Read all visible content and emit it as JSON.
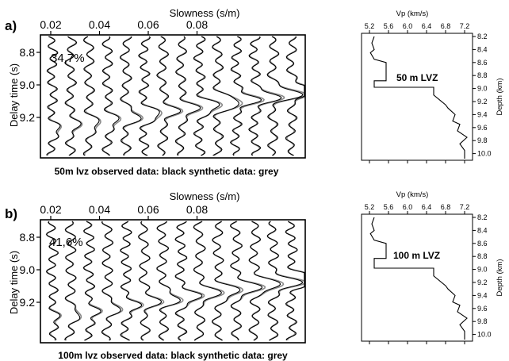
{
  "chart_data": [
    {
      "type": "line",
      "panel_label": "a)",
      "title": "Slowness (s/m)",
      "ylabel": "Delay time (s)",
      "annotation": "34,7%",
      "caption": "50m lvz  observed data: black synthetic data: grey",
      "x_ticks": [
        "0.02",
        "0.04",
        "0.06",
        "0.08"
      ],
      "y_ticks": [
        "8.8",
        "9.0",
        "9.2"
      ],
      "series": [
        {
          "name": "observed data",
          "color": "#000000"
        },
        {
          "name": "synthetic data",
          "color": "#8a8a8a"
        }
      ]
    },
    {
      "type": "line",
      "panel_label": "b)",
      "title": "Slowness (s/m)",
      "ylabel": "Delay time (s)",
      "annotation": "41,6%",
      "caption": "100m lvz  observed data: black synthetic data: grey",
      "x_ticks": [
        "0.02",
        "0.04",
        "0.06",
        "0.08"
      ],
      "y_ticks": [
        "8.8",
        "9.0",
        "9.2"
      ],
      "series": [
        {
          "name": "observed data",
          "color": "#000000"
        },
        {
          "name": "synthetic data",
          "color": "#8a8a8a"
        }
      ]
    },
    {
      "type": "line",
      "title": "Vp (km/s)",
      "ylabel": "Depth (km)",
      "annotation": "50 m LVZ",
      "x_ticks": [
        "5.2",
        "5.6",
        "6.0",
        "6.4",
        "6.8",
        "7.2"
      ],
      "y_ticks": [
        "8.2",
        "8.4",
        "8.6",
        "8.8",
        "9.0",
        "9.2",
        "9.4",
        "9.6",
        "9.8",
        "10.0"
      ],
      "x": [
        5.3,
        5.25,
        5.3,
        5.22,
        5.3,
        5.55,
        5.55,
        5.3,
        5.3,
        6.55,
        6.55,
        6.8,
        6.85,
        7.0,
        6.95,
        7.1,
        7.05,
        7.25,
        7.1,
        7.2,
        7.2
      ],
      "y": [
        8.2,
        8.3,
        8.4,
        8.45,
        8.55,
        8.6,
        8.88,
        8.88,
        8.98,
        8.98,
        9.1,
        9.25,
        9.3,
        9.4,
        9.5,
        9.55,
        9.65,
        9.75,
        9.85,
        9.95,
        10.1
      ]
    },
    {
      "type": "line",
      "title": "Vp (km/s)",
      "ylabel": "Depth (km)",
      "annotation": "100 m LVZ",
      "x_ticks": [
        "5.2",
        "5.6",
        "6.0",
        "6.4",
        "6.8",
        "7.2"
      ],
      "y_ticks": [
        "8.2",
        "8.4",
        "8.6",
        "8.8",
        "9.0",
        "9.2",
        "9.4",
        "9.6",
        "9.8",
        "10.0"
      ],
      "x": [
        5.3,
        5.25,
        5.3,
        5.22,
        5.3,
        5.55,
        5.55,
        5.3,
        5.3,
        6.55,
        6.55,
        6.8,
        6.85,
        7.0,
        6.95,
        7.1,
        7.05,
        7.25,
        7.1,
        7.2,
        7.2
      ],
      "y": [
        8.2,
        8.3,
        8.4,
        8.45,
        8.55,
        8.6,
        8.83,
        8.83,
        8.98,
        8.98,
        9.1,
        9.25,
        9.3,
        9.4,
        9.5,
        9.55,
        9.65,
        9.75,
        9.85,
        9.95,
        10.1
      ]
    }
  ]
}
